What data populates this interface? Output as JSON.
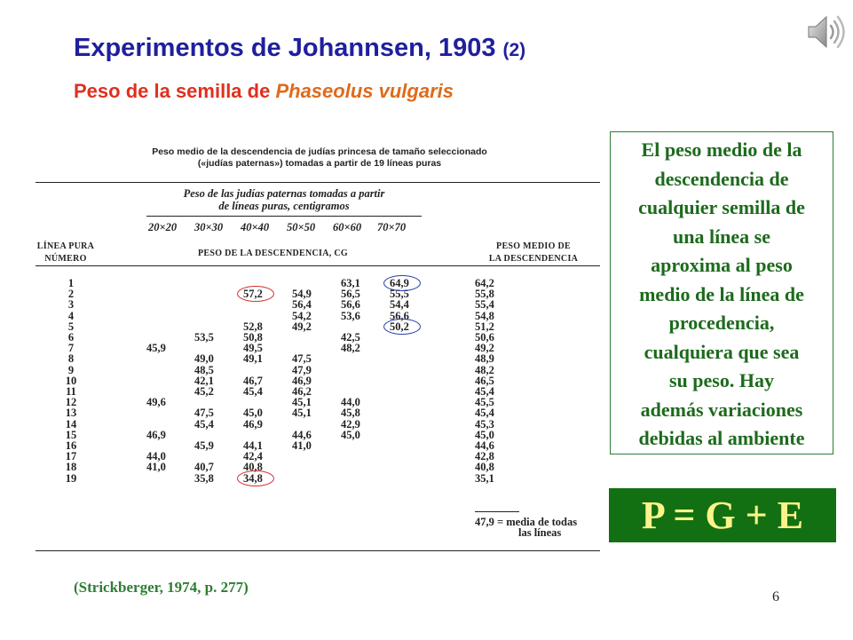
{
  "slide": {
    "title": "Experimentos de Johannsen, 1903",
    "title_suffix": "(2)",
    "subtitle_prefix": "Peso de la semilla de ",
    "subtitle_species": "Phaseolus vulgaris",
    "speaker_icon": "speaker-icon",
    "page_number": "6",
    "citation": "(Strickberger, 1974, p. 277)"
  },
  "table": {
    "caption_line1": "Peso medio de la descendencia de judías princesa de tamaño seleccionado",
    "caption_line2": "(«judías paternas») tomadas a partir de 19 líneas puras",
    "group_header_line1": "Peso de las judías paternas tomadas a partir",
    "group_header_line2": "de líneas puras, centigramos",
    "size_classes": [
      "20×20",
      "30×30",
      "40×40",
      "50×50",
      "60×60",
      "70×70"
    ],
    "col_left_line1": "LÍNEA PURA",
    "col_left_line2": "NÚMERO",
    "col_mid": "PESO DE LA DESCENDENCIA, CG",
    "col_right_line1": "PESO MEDIO DE",
    "col_right_line2": "LA DESCENDENCIA",
    "rows": [
      {
        "line": "1",
        "c1": "",
        "c2": "",
        "c3": "",
        "c4": "",
        "c5": "63,1",
        "c6": "64,9",
        "mean": "64,2"
      },
      {
        "line": "2",
        "c1": "",
        "c2": "",
        "c3": "57,2",
        "c4": "54,9",
        "c5": "56,5",
        "c6": "55,5",
        "mean": "55,8"
      },
      {
        "line": "3",
        "c1": "",
        "c2": "",
        "c3": "",
        "c4": "56,4",
        "c5": "56,6",
        "c6": "54,4",
        "mean": "55,4"
      },
      {
        "line": "4",
        "c1": "",
        "c2": "",
        "c3": "",
        "c4": "54,2",
        "c5": "53,6",
        "c6": "56,6",
        "mean": "54,8"
      },
      {
        "line": "5",
        "c1": "",
        "c2": "",
        "c3": "52,8",
        "c4": "49,2",
        "c5": "",
        "c6": "50,2",
        "mean": "51,2"
      },
      {
        "line": "6",
        "c1": "",
        "c2": "53,5",
        "c3": "50,8",
        "c4": "",
        "c5": "42,5",
        "c6": "",
        "mean": "50,6"
      },
      {
        "line": "7",
        "c1": "45,9",
        "c2": "",
        "c3": "49,5",
        "c4": "",
        "c5": "48,2",
        "c6": "",
        "mean": "49,2"
      },
      {
        "line": "8",
        "c1": "",
        "c2": "49,0",
        "c3": "49,1",
        "c4": "47,5",
        "c5": "",
        "c6": "",
        "mean": "48,9"
      },
      {
        "line": "9",
        "c1": "",
        "c2": "48,5",
        "c3": "",
        "c4": "47,9",
        "c5": "",
        "c6": "",
        "mean": "48,2"
      },
      {
        "line": "10",
        "c1": "",
        "c2": "42,1",
        "c3": "46,7",
        "c4": "46,9",
        "c5": "",
        "c6": "",
        "mean": "46,5"
      },
      {
        "line": "11",
        "c1": "",
        "c2": "45,2",
        "c3": "45,4",
        "c4": "46,2",
        "c5": "",
        "c6": "",
        "mean": "45,4"
      },
      {
        "line": "12",
        "c1": "49,6",
        "c2": "",
        "c3": "",
        "c4": "45,1",
        "c5": "44,0",
        "c6": "",
        "mean": "45,5"
      },
      {
        "line": "13",
        "c1": "",
        "c2": "47,5",
        "c3": "45,0",
        "c4": "45,1",
        "c5": "45,8",
        "c6": "",
        "mean": "45,4"
      },
      {
        "line": "14",
        "c1": "",
        "c2": "45,4",
        "c3": "46,9",
        "c4": "",
        "c5": "42,9",
        "c6": "",
        "mean": "45,3"
      },
      {
        "line": "15",
        "c1": "46,9",
        "c2": "",
        "c3": "",
        "c4": "44,6",
        "c5": "45,0",
        "c6": "",
        "mean": "45,0"
      },
      {
        "line": "16",
        "c1": "",
        "c2": "45,9",
        "c3": "44,1",
        "c4": "41,0",
        "c5": "",
        "c6": "",
        "mean": "44,6"
      },
      {
        "line": "17",
        "c1": "44,0",
        "c2": "",
        "c3": "42,4",
        "c4": "",
        "c5": "",
        "c6": "",
        "mean": "42,8"
      },
      {
        "line": "18",
        "c1": "41,0",
        "c2": "40,7",
        "c3": "40,8",
        "c4": "",
        "c5": "",
        "c6": "",
        "mean": "40,8"
      },
      {
        "line": "19",
        "c1": "",
        "c2": "35,8",
        "c3": "34,8",
        "c4": "",
        "c5": "",
        "c6": "",
        "mean": "35,1"
      }
    ],
    "overall_mean": "47,9",
    "overall_label_line1": "= media de todas",
    "overall_label_line2": "las líneas",
    "highlights": [
      {
        "row": 1,
        "col": "c6",
        "color": "#2a3fa8"
      },
      {
        "row": 2,
        "col": "c3",
        "color": "#d23030"
      },
      {
        "row": 5,
        "col": "c6",
        "color": "#2a3fa8"
      },
      {
        "row": 19,
        "col": "c3",
        "color": "#d23030"
      }
    ]
  },
  "note": {
    "lines": [
      "El peso medio de la",
      "descendencia de",
      "cualquier semilla de",
      "una línea se",
      "aproxima al peso",
      "medio de la línea de",
      "procedencia,",
      "cualquiera que sea",
      "su peso. Hay",
      "además variaciones",
      "debidas al ambiente"
    ]
  },
  "formula": "P = G + E"
}
